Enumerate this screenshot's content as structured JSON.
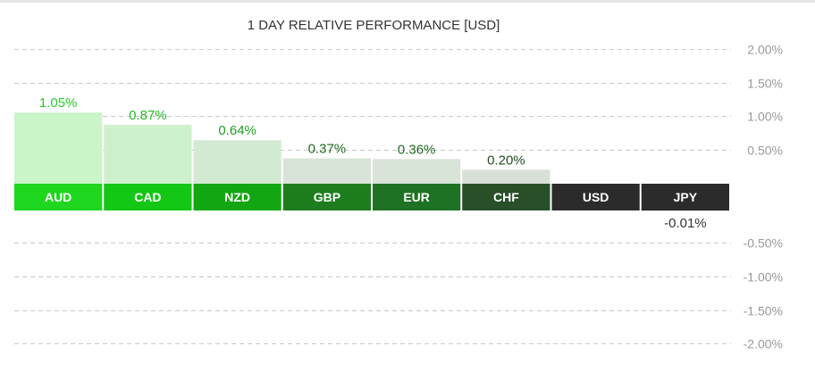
{
  "chart_data": {
    "type": "bar",
    "title": "1 DAY RELATIVE PERFORMANCE  [USD]",
    "categories": [
      "AUD",
      "CAD",
      "NZD",
      "GBP",
      "EUR",
      "CHF",
      "USD",
      "JPY"
    ],
    "values": [
      1.05,
      0.87,
      0.64,
      0.37,
      0.36,
      0.2,
      null,
      -0.01
    ],
    "value_labels": [
      "1.05%",
      "0.87%",
      "0.64%",
      "0.37%",
      "0.36%",
      "0.20%",
      "",
      "-0.01%"
    ],
    "ylim": [
      -2.0,
      2.0
    ],
    "yticks": [
      2.0,
      1.5,
      1.0,
      0.5,
      -0.5,
      -1.0,
      -1.5,
      -2.0
    ],
    "ytick_labels": [
      "2.00%",
      "1.50%",
      "1.00%",
      "0.50%",
      "-0.50%",
      "-1.00%",
      "-1.50%",
      "-2.00%"
    ],
    "grid": true,
    "legend": "none",
    "colors": {
      "category_bg": [
        "#1ed71e",
        "#15c715",
        "#12a712",
        "#1e7d1e",
        "#1e7223",
        "#284f28",
        "#2b2b2b",
        "#2b2b2b"
      ],
      "bar_fill": [
        "#c9f5c9",
        "#cdf1cd",
        "#d2ead2",
        "#d8e4d8",
        "#d8e4d8",
        "#d8e0d8",
        "#e0e0e0",
        "#e0e0e0"
      ],
      "label_color": [
        "#24cc24",
        "#22b822",
        "#1f9e1f",
        "#1d6b1d",
        "#1d6b1d",
        "#224d22",
        "#333333",
        "#333333"
      ],
      "grid": "#c8c8c8",
      "tick_text": "#999999"
    }
  }
}
